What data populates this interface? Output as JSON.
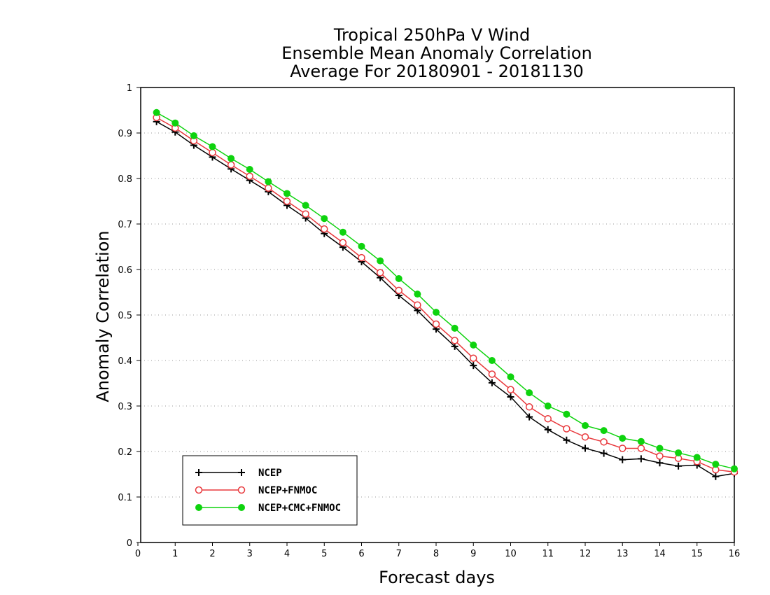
{
  "chart_data": {
    "type": "line",
    "title": [
      "Tropical 250hPa V Wind",
      "Ensemble Mean Anomaly Correlation",
      "Average For 20180901 - 20181130"
    ],
    "xlabel": "Forecast days",
    "ylabel": "Anomaly Correlation",
    "xlim": [
      0,
      16
    ],
    "ylim": [
      0,
      1
    ],
    "xticks": [
      "0",
      "1",
      "2",
      "3",
      "4",
      "5",
      "6",
      "7",
      "8",
      "9",
      "10",
      "11",
      "12",
      "13",
      "14",
      "15",
      "16"
    ],
    "yticks": [
      "0",
      "0.1",
      "0.2",
      "0.3",
      "0.4",
      "0.5",
      "0.6",
      "0.7",
      "0.8",
      "0.9",
      "1"
    ],
    "grid": "horizontal dotted",
    "legend_position": "bottom-left",
    "x": [
      0.5,
      1,
      1.5,
      2,
      2.5,
      3,
      3.5,
      4,
      4.5,
      5,
      5.5,
      6,
      6.5,
      7,
      7.5,
      8,
      8.5,
      9,
      9.5,
      10,
      10.5,
      11,
      11.5,
      12,
      12.5,
      13,
      13.5,
      14,
      14.5,
      15,
      15.5,
      16
    ],
    "series": [
      {
        "name": "NCEP",
        "color": "#000000",
        "marker": "plus",
        "values": [
          0.925,
          0.902,
          0.873,
          0.847,
          0.821,
          0.796,
          0.771,
          0.741,
          0.713,
          0.679,
          0.649,
          0.617,
          0.582,
          0.543,
          0.51,
          0.469,
          0.431,
          0.389,
          0.351,
          0.32,
          0.276,
          0.248,
          0.225,
          0.207,
          0.196,
          0.182,
          0.184,
          0.175,
          0.168,
          0.17,
          0.145,
          0.152
        ]
      },
      {
        "name": "NCEP+FNMOC",
        "color": "#e8383c",
        "marker": "open-circle",
        "values": [
          0.934,
          0.911,
          0.883,
          0.857,
          0.83,
          0.805,
          0.779,
          0.75,
          0.722,
          0.689,
          0.659,
          0.626,
          0.593,
          0.554,
          0.522,
          0.48,
          0.444,
          0.405,
          0.37,
          0.336,
          0.298,
          0.272,
          0.25,
          0.232,
          0.221,
          0.207,
          0.207,
          0.19,
          0.185,
          0.178,
          0.16,
          0.155
        ]
      },
      {
        "name": "NCEP+CMC+FNMOC",
        "color": "#0ed30e",
        "marker": "filled-circle",
        "values": [
          0.945,
          0.922,
          0.894,
          0.87,
          0.844,
          0.82,
          0.793,
          0.767,
          0.741,
          0.712,
          0.682,
          0.651,
          0.619,
          0.58,
          0.546,
          0.506,
          0.471,
          0.434,
          0.4,
          0.364,
          0.329,
          0.3,
          0.282,
          0.257,
          0.246,
          0.229,
          0.222,
          0.207,
          0.197,
          0.187,
          0.172,
          0.162
        ]
      }
    ]
  }
}
